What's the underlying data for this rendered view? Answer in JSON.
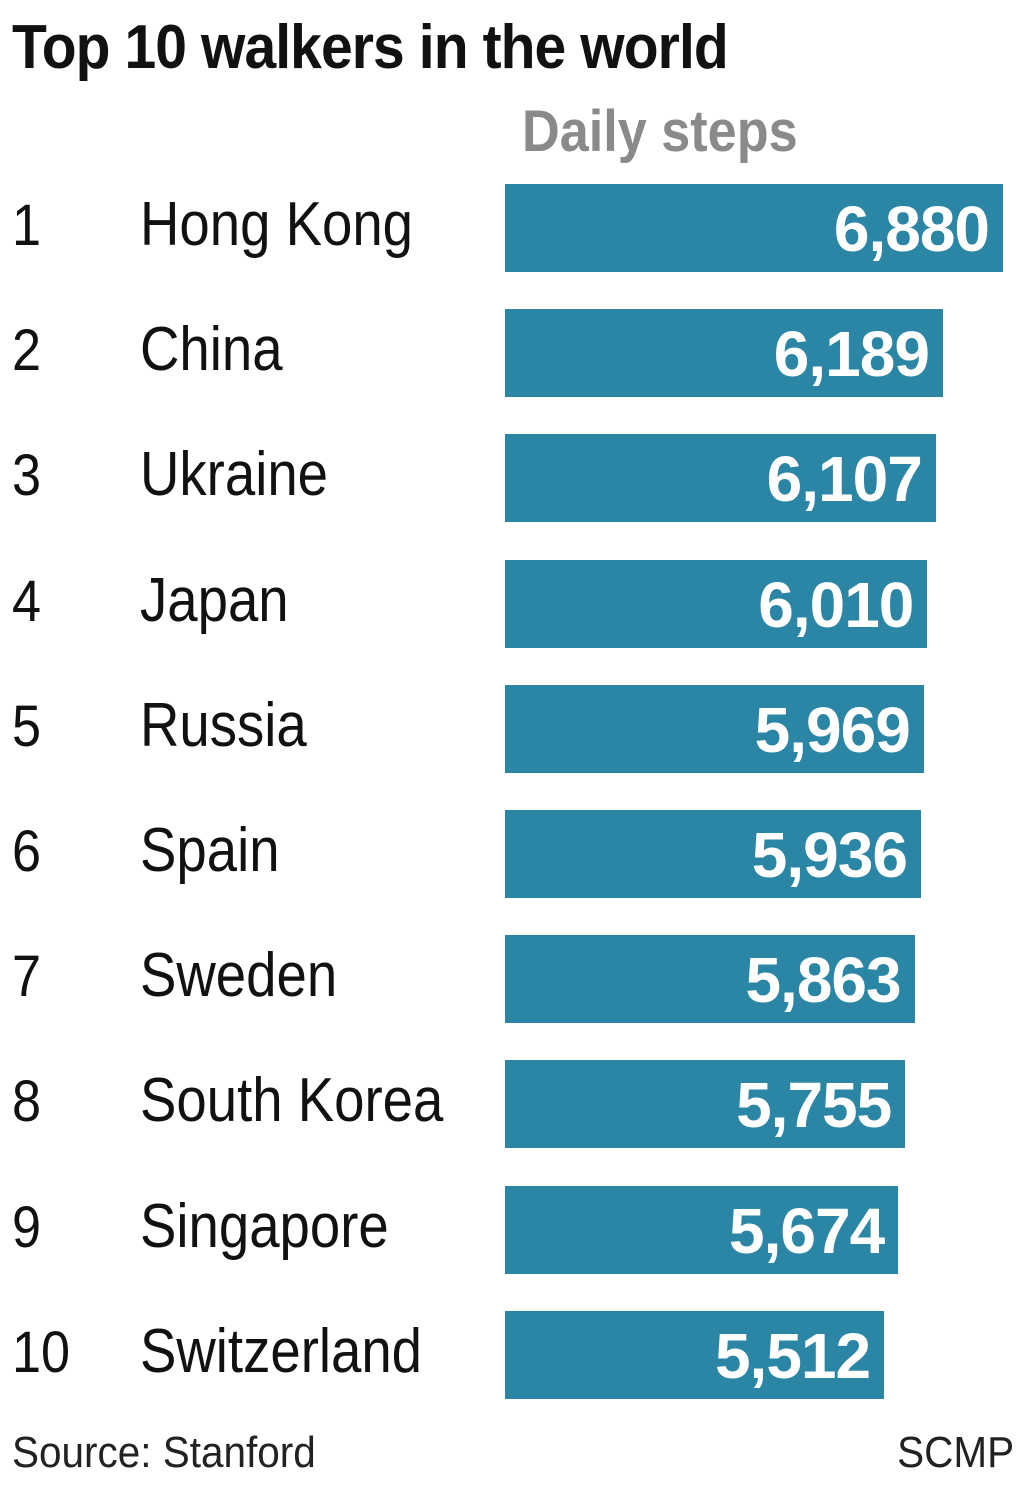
{
  "chart_data": {
    "type": "bar",
    "orientation": "horizontal",
    "title": "Top 10 walkers in the world",
    "value_label": "Daily steps",
    "ranks": [
      "1",
      "2",
      "3",
      "4",
      "5",
      "6",
      "7",
      "8",
      "9",
      "10"
    ],
    "categories": [
      "Hong Kong",
      "China",
      "Ukraine",
      "Japan",
      "Russia",
      "Spain",
      "Sweden",
      "South Korea",
      "Singapore",
      "Switzerland"
    ],
    "values": [
      6880,
      6189,
      6107,
      6010,
      5969,
      5936,
      5863,
      5755,
      5674,
      5512
    ],
    "value_labels": [
      "6,880",
      "6,189",
      "6,107",
      "6,010",
      "5,969",
      "5,936",
      "5,863",
      "5,755",
      "5,674",
      "5,512"
    ],
    "bar_color": "#2a86a4",
    "source": "Source: Stanford",
    "credit": "SCMP"
  }
}
